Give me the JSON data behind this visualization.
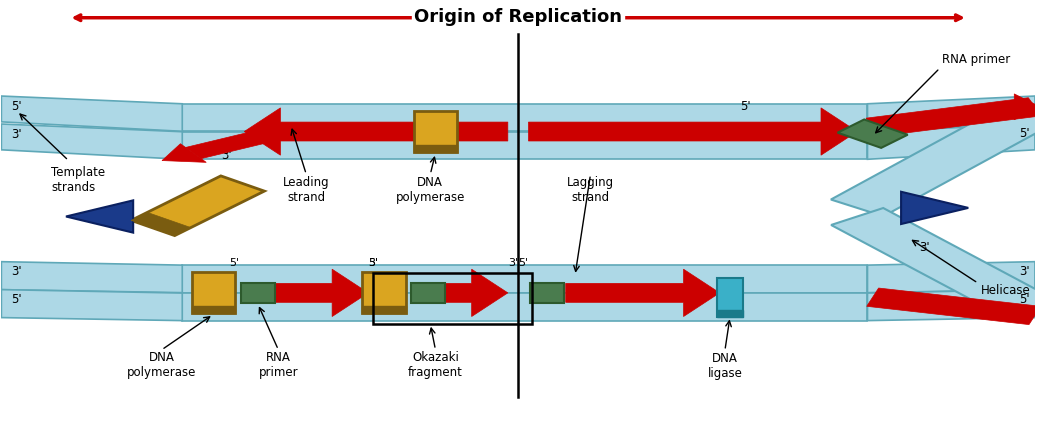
{
  "title": "Origin of Replication",
  "bg": "#ffffff",
  "lb": "#add8e6",
  "lb_b": "#5fa8b8",
  "red": "#cc0000",
  "gold": "#daa520",
  "dark_gold": "#7a5c10",
  "green": "#4a7c4e",
  "blue_arrow": "#1a3a8a",
  "teal": "#3ab0c8",
  "dark_teal": "#1a7a8a",
  "labels": {
    "template_strands": "Template\nstrands",
    "leading_strand": "Leading\nstrand",
    "dna_pol_top": "DNA\npolymerase",
    "lagging_strand": "Lagging\nstrand",
    "dna_pol_bot": "DNA\npolymerase",
    "rna_primer_bot": "RNA\nprimer",
    "okazaki": "Okazaki\nfragment",
    "dna_ligase": "DNA\nligase",
    "rna_primer_top": "RNA primer",
    "helicase": "Helicase"
  }
}
